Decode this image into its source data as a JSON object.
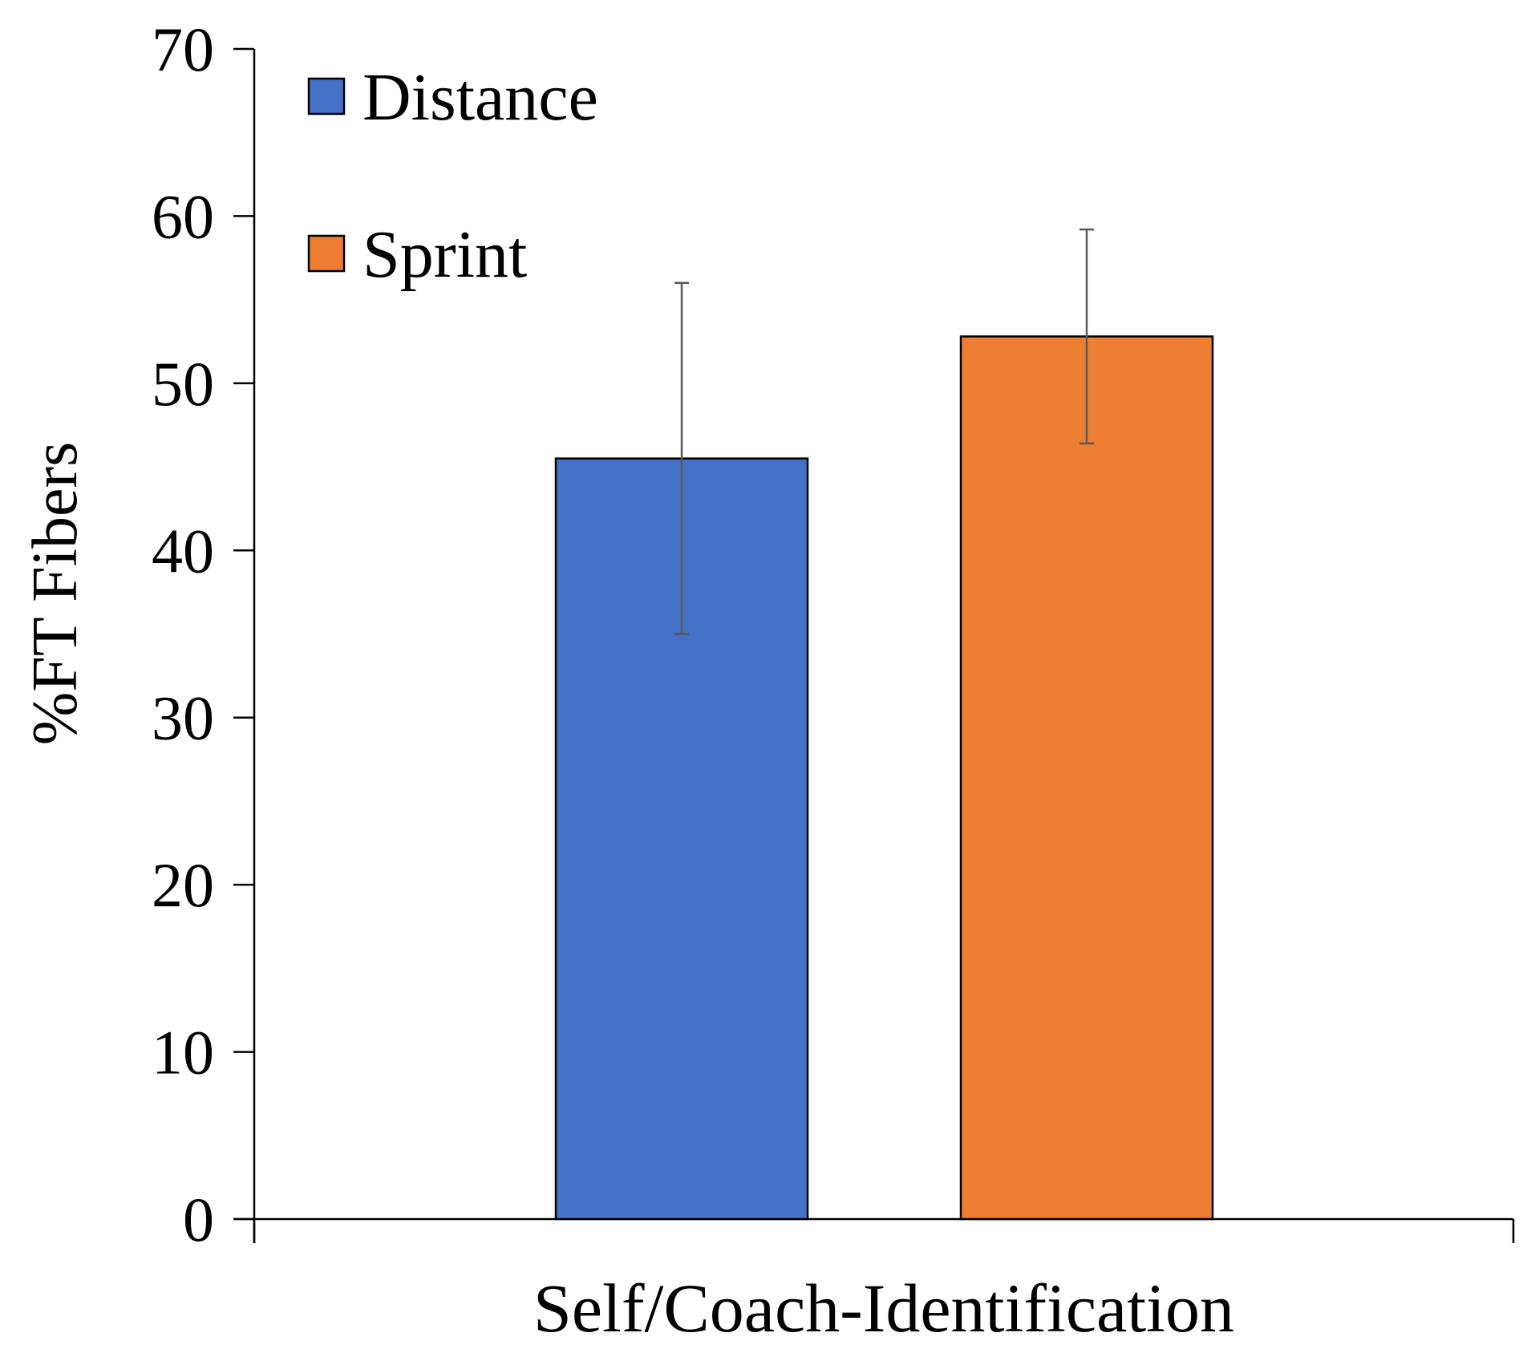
{
  "chart_data": {
    "type": "bar",
    "categories": [
      "Self/Coach-Identification"
    ],
    "xlabel": "Self/Coach-Identification",
    "ylabel": "%FT Fibers",
    "ylim": [
      0,
      70
    ],
    "yticks": [
      0,
      10,
      20,
      30,
      40,
      50,
      60,
      70
    ],
    "grid": false,
    "legend_position": "top-left",
    "series": [
      {
        "name": "Distance",
        "color": "#4472C4",
        "values": [
          45.5
        ],
        "error": [
          10.5
        ]
      },
      {
        "name": "Sprint",
        "color": "#ED7D31",
        "values": [
          52.8
        ],
        "error": [
          6.4
        ]
      }
    ]
  }
}
